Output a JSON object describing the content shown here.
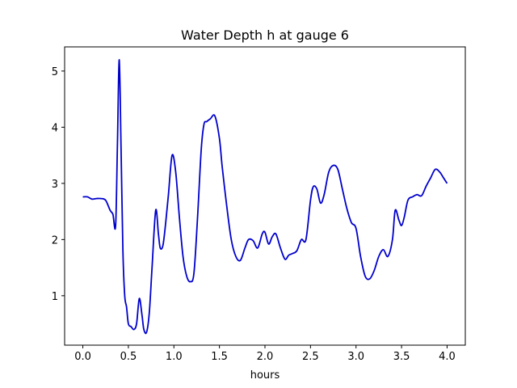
{
  "chart_data": {
    "type": "line",
    "title": "Water Depth h at gauge 6",
    "xlabel": "hours",
    "ylabel": "",
    "xlim": [
      -0.2,
      4.2
    ],
    "ylim": [
      0.12,
      5.43
    ],
    "grid": false,
    "legend": "none",
    "x_ticks": [
      0.0,
      0.5,
      1.0,
      1.5,
      2.0,
      2.5,
      3.0,
      3.5,
      4.0
    ],
    "x_tick_labels": [
      "0.0",
      "0.5",
      "1.0",
      "1.5",
      "2.0",
      "2.5",
      "3.0",
      "3.5",
      "4.0"
    ],
    "y_ticks": [
      1,
      2,
      3,
      4,
      5
    ],
    "y_tick_labels": [
      "1",
      "2",
      "3",
      "4",
      "5"
    ],
    "colors": {
      "line": "#0000cc",
      "axes": "#000000"
    },
    "series": [
      {
        "x": [
          0.0,
          0.05,
          0.1,
          0.15,
          0.2,
          0.25,
          0.3,
          0.33,
          0.36,
          0.38,
          0.4,
          0.42,
          0.44,
          0.46,
          0.48,
          0.5,
          0.53,
          0.56,
          0.59,
          0.62,
          0.65,
          0.67,
          0.7,
          0.73,
          0.76,
          0.8,
          0.83,
          0.85,
          0.88,
          0.91,
          0.94,
          0.98,
          1.02,
          1.06,
          1.1,
          1.14,
          1.18,
          1.22,
          1.26,
          1.3,
          1.33,
          1.36,
          1.4,
          1.45,
          1.5,
          1.53,
          1.58,
          1.63,
          1.68,
          1.73,
          1.78,
          1.82,
          1.87,
          1.92,
          1.97,
          2.0,
          2.04,
          2.08,
          2.12,
          2.17,
          2.22,
          2.26,
          2.3,
          2.35,
          2.4,
          2.45,
          2.5,
          2.53,
          2.57,
          2.61,
          2.65,
          2.7,
          2.75,
          2.8,
          2.85,
          2.9,
          2.95,
          3.0,
          3.05,
          3.1,
          3.15,
          3.2,
          3.25,
          3.3,
          3.35,
          3.4,
          3.43,
          3.47,
          3.5,
          3.53,
          3.57,
          3.62,
          3.67,
          3.72,
          3.77,
          3.82,
          3.87,
          3.92,
          3.96,
          4.0
        ],
        "y": [
          2.76,
          2.76,
          2.72,
          2.73,
          2.73,
          2.7,
          2.52,
          2.45,
          2.25,
          3.7,
          5.2,
          3.6,
          1.8,
          1.0,
          0.8,
          0.5,
          0.45,
          0.4,
          0.5,
          0.95,
          0.65,
          0.4,
          0.35,
          0.7,
          1.5,
          2.52,
          2.1,
          1.85,
          1.9,
          2.3,
          2.8,
          3.5,
          3.2,
          2.4,
          1.7,
          1.35,
          1.25,
          1.4,
          2.4,
          3.6,
          4.05,
          4.1,
          4.15,
          4.2,
          3.8,
          3.3,
          2.6,
          2.0,
          1.7,
          1.63,
          1.85,
          2.0,
          1.98,
          1.85,
          2.1,
          2.13,
          1.92,
          2.05,
          2.1,
          1.85,
          1.65,
          1.72,
          1.75,
          1.8,
          2.0,
          2.0,
          2.7,
          2.94,
          2.9,
          2.65,
          2.8,
          3.2,
          3.32,
          3.25,
          2.9,
          2.55,
          2.3,
          2.2,
          1.7,
          1.35,
          1.3,
          1.45,
          1.7,
          1.82,
          1.7,
          2.0,
          2.52,
          2.35,
          2.25,
          2.4,
          2.7,
          2.76,
          2.8,
          2.78,
          2.95,
          3.1,
          3.25,
          3.2,
          3.1,
          3.0
        ]
      }
    ]
  }
}
